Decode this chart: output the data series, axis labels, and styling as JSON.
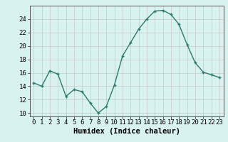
{
  "x": [
    0,
    1,
    2,
    3,
    4,
    5,
    6,
    7,
    8,
    9,
    10,
    11,
    12,
    13,
    14,
    15,
    16,
    17,
    18,
    19,
    20,
    21,
    22,
    23
  ],
  "y": [
    14.5,
    14.0,
    16.3,
    15.8,
    12.5,
    13.5,
    13.2,
    11.5,
    10.0,
    11.0,
    14.2,
    18.5,
    20.5,
    22.5,
    24.0,
    25.2,
    25.3,
    24.7,
    23.2,
    20.2,
    17.5,
    16.1,
    15.7,
    15.3
  ],
  "line_color": "#2d7a6e",
  "marker": "+",
  "marker_size": 3,
  "marker_linewidth": 1.0,
  "bg_color": "#d8f2f0",
  "grid_color": "#c8c8c8",
  "grid_color_minor": "#e0c0c0",
  "xlabel": "Humidex (Indice chaleur)",
  "xlim": [
    -0.5,
    23.5
  ],
  "ylim": [
    9.5,
    26.0
  ],
  "yticks": [
    10,
    12,
    14,
    16,
    18,
    20,
    22,
    24
  ],
  "xticks": [
    0,
    1,
    2,
    3,
    4,
    5,
    6,
    7,
    8,
    9,
    10,
    11,
    12,
    13,
    14,
    15,
    16,
    17,
    18,
    19,
    20,
    21,
    22,
    23
  ],
  "xlabel_fontsize": 7.5,
  "tick_fontsize": 6.5,
  "line_width": 1.0
}
